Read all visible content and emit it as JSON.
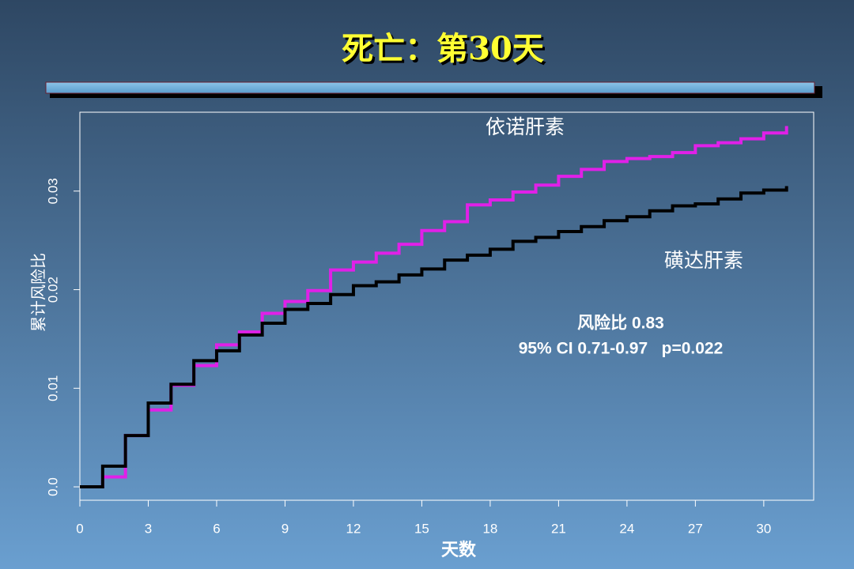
{
  "chart_data": {
    "type": "line",
    "title": "死亡：第30天",
    "x_label": "天数",
    "y_label": "累计风险比",
    "x": [
      0,
      1,
      2,
      3,
      4,
      5,
      6,
      7,
      8,
      9,
      10,
      11,
      12,
      13,
      14,
      15,
      16,
      17,
      18,
      19,
      20,
      21,
      22,
      23,
      24,
      25,
      26,
      27,
      28,
      29,
      30,
      31
    ],
    "series": [
      {
        "name": "依诺肝素",
        "color": "#e020e8",
        "values": [
          0,
          0.001,
          0.0052,
          0.0078,
          0.0103,
          0.0123,
          0.0144,
          0.0157,
          0.0176,
          0.0188,
          0.0199,
          0.022,
          0.0228,
          0.0237,
          0.0246,
          0.026,
          0.0269,
          0.0286,
          0.0291,
          0.0299,
          0.0306,
          0.0315,
          0.0322,
          0.033,
          0.0333,
          0.0335,
          0.0339,
          0.0346,
          0.0349,
          0.0353,
          0.0359,
          0.0366
        ]
      },
      {
        "name": "磺达肝素",
        "color": "#000000",
        "values": [
          0,
          0.0021,
          0.0052,
          0.0085,
          0.0104,
          0.0128,
          0.0138,
          0.0154,
          0.0166,
          0.018,
          0.0186,
          0.0195,
          0.0204,
          0.0208,
          0.0215,
          0.0221,
          0.023,
          0.0235,
          0.0241,
          0.0249,
          0.0253,
          0.0259,
          0.0264,
          0.027,
          0.0274,
          0.028,
          0.0285,
          0.0287,
          0.0292,
          0.0298,
          0.0301,
          0.0305
        ]
      }
    ],
    "annotations": [
      "风险比 0.83",
      "95% CI 0.71-0.97   p=0.022"
    ],
    "xlim": [
      0,
      32.19
    ],
    "ylim": [
      -0.00136,
      0.038
    ],
    "xticks": [
      0,
      3,
      6,
      9,
      12,
      15,
      18,
      21,
      24,
      27,
      30
    ],
    "yticks": [
      {
        "value": 0,
        "label": "0.0"
      },
      0.01,
      0.02,
      0.03
    ]
  }
}
